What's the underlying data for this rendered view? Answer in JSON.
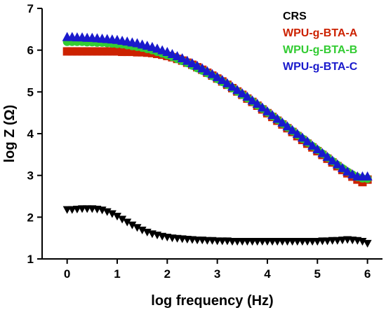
{
  "chart_data": {
    "type": "scatter",
    "title": "",
    "xlabel": "log frequency (Hz)",
    "ylabel": "log Z (Ω)",
    "xlim": [
      -0.5,
      6.3
    ],
    "ylim": [
      1,
      7
    ],
    "xticks": [
      "0",
      "1",
      "2",
      "3",
      "4",
      "5",
      "6"
    ],
    "yticks": [
      "1",
      "2",
      "3",
      "4",
      "5",
      "6",
      "7"
    ],
    "grid": false,
    "legend_position": "top-right",
    "series": [
      {
        "name": "CRS",
        "color": "#000000",
        "marker": "triangle-down",
        "x": [
          0,
          0.1,
          0.2,
          0.3,
          0.4,
          0.5,
          0.6,
          0.7,
          0.8,
          0.9,
          1.0,
          1.1,
          1.2,
          1.3,
          1.4,
          1.5,
          1.6,
          1.7,
          1.8,
          1.9,
          2.0,
          2.1,
          2.2,
          2.3,
          2.4,
          2.5,
          2.6,
          2.7,
          2.8,
          2.9,
          3.0,
          3.1,
          3.2,
          3.3,
          3.4,
          3.5,
          3.6,
          3.7,
          3.8,
          3.9,
          4.0,
          4.1,
          4.2,
          4.3,
          4.4,
          4.5,
          4.6,
          4.7,
          4.8,
          4.9,
          5.0,
          5.1,
          5.2,
          5.3,
          5.4,
          5.5,
          5.6,
          5.7,
          5.8,
          5.9,
          6.0
        ],
        "y": [
          2.18,
          2.18,
          2.19,
          2.2,
          2.2,
          2.2,
          2.19,
          2.17,
          2.13,
          2.08,
          2.02,
          1.95,
          1.88,
          1.81,
          1.75,
          1.69,
          1.64,
          1.6,
          1.57,
          1.54,
          1.52,
          1.5,
          1.49,
          1.48,
          1.47,
          1.46,
          1.45,
          1.45,
          1.44,
          1.44,
          1.43,
          1.43,
          1.43,
          1.42,
          1.42,
          1.42,
          1.42,
          1.42,
          1.42,
          1.42,
          1.42,
          1.42,
          1.42,
          1.42,
          1.42,
          1.42,
          1.42,
          1.42,
          1.42,
          1.42,
          1.42,
          1.43,
          1.43,
          1.44,
          1.44,
          1.45,
          1.46,
          1.45,
          1.44,
          1.42,
          1.37
        ]
      },
      {
        "name": "WPU-g-BTA-A",
        "color": "#cc2200",
        "marker": "square",
        "x": [
          0,
          0.1,
          0.2,
          0.3,
          0.4,
          0.5,
          0.6,
          0.7,
          0.8,
          0.9,
          1.0,
          1.1,
          1.2,
          1.3,
          1.4,
          1.5,
          1.6,
          1.7,
          1.8,
          1.9,
          2.0,
          2.1,
          2.2,
          2.3,
          2.4,
          2.5,
          2.6,
          2.7,
          2.8,
          2.9,
          3.0,
          3.1,
          3.2,
          3.3,
          3.4,
          3.5,
          3.6,
          3.7,
          3.8,
          3.9,
          4.0,
          4.1,
          4.2,
          4.3,
          4.4,
          4.5,
          4.6,
          4.7,
          4.8,
          4.9,
          5.0,
          5.1,
          5.2,
          5.3,
          5.4,
          5.5,
          5.6,
          5.7,
          5.8,
          5.9,
          6.0
        ],
        "y": [
          5.97,
          5.97,
          5.97,
          5.97,
          5.97,
          5.97,
          5.97,
          5.97,
          5.97,
          5.97,
          5.97,
          5.96,
          5.96,
          5.96,
          5.95,
          5.95,
          5.94,
          5.93,
          5.91,
          5.89,
          5.86,
          5.83,
          5.79,
          5.75,
          5.7,
          5.65,
          5.59,
          5.53,
          5.46,
          5.39,
          5.32,
          5.25,
          5.17,
          5.09,
          5.01,
          4.93,
          4.84,
          4.76,
          4.67,
          4.58,
          4.49,
          4.4,
          4.31,
          4.22,
          4.13,
          4.04,
          3.94,
          3.85,
          3.76,
          3.67,
          3.58,
          3.49,
          3.4,
          3.31,
          3.22,
          3.13,
          3.05,
          2.97,
          2.9,
          2.84,
          2.9
        ]
      },
      {
        "name": "WPU-g-BTA-B",
        "color": "#33cc33",
        "marker": "circle",
        "x": [
          0,
          0.1,
          0.2,
          0.3,
          0.4,
          0.5,
          0.6,
          0.7,
          0.8,
          0.9,
          1.0,
          1.1,
          1.2,
          1.3,
          1.4,
          1.5,
          1.6,
          1.7,
          1.8,
          1.9,
          2.0,
          2.1,
          2.2,
          2.3,
          2.4,
          2.5,
          2.6,
          2.7,
          2.8,
          2.9,
          3.0,
          3.1,
          3.2,
          3.3,
          3.4,
          3.5,
          3.6,
          3.7,
          3.8,
          3.9,
          4.0,
          4.1,
          4.2,
          4.3,
          4.4,
          4.5,
          4.6,
          4.7,
          4.8,
          4.9,
          5.0,
          5.1,
          5.2,
          5.3,
          5.4,
          5.5,
          5.6,
          5.7,
          5.8,
          5.9,
          6.0
        ],
        "y": [
          6.2,
          6.2,
          6.2,
          6.2,
          6.19,
          6.19,
          6.18,
          6.18,
          6.17,
          6.16,
          6.15,
          6.14,
          6.12,
          6.1,
          6.08,
          6.06,
          6.03,
          6.0,
          5.96,
          5.92,
          5.88,
          5.84,
          5.79,
          5.74,
          5.69,
          5.63,
          5.57,
          5.51,
          5.45,
          5.38,
          5.31,
          5.24,
          5.17,
          5.09,
          5.01,
          4.93,
          4.85,
          4.77,
          4.68,
          4.6,
          4.51,
          4.42,
          4.33,
          4.24,
          4.15,
          4.06,
          3.97,
          3.88,
          3.79,
          3.7,
          3.61,
          3.52,
          3.43,
          3.34,
          3.25,
          3.17,
          3.09,
          3.02,
          2.96,
          2.93,
          2.92
        ]
      },
      {
        "name": "WPU-g-BTA-C",
        "color": "#1a1acc",
        "marker": "triangle-up",
        "x": [
          0,
          0.1,
          0.2,
          0.3,
          0.4,
          0.5,
          0.6,
          0.7,
          0.8,
          0.9,
          1.0,
          1.1,
          1.2,
          1.3,
          1.4,
          1.5,
          1.6,
          1.7,
          1.8,
          1.9,
          2.0,
          2.1,
          2.2,
          2.3,
          2.4,
          2.5,
          2.6,
          2.7,
          2.8,
          2.9,
          3.0,
          3.1,
          3.2,
          3.3,
          3.4,
          3.5,
          3.6,
          3.7,
          3.8,
          3.9,
          4.0,
          4.1,
          4.2,
          4.3,
          4.4,
          4.5,
          4.6,
          4.7,
          4.8,
          4.9,
          5.0,
          5.1,
          5.2,
          5.3,
          5.4,
          5.5,
          5.6,
          5.7,
          5.8,
          5.9,
          6.0
        ],
        "y": [
          6.32,
          6.32,
          6.31,
          6.31,
          6.3,
          6.3,
          6.29,
          6.28,
          6.27,
          6.26,
          6.25,
          6.23,
          6.21,
          6.19,
          6.17,
          6.14,
          6.11,
          6.08,
          6.04,
          6.0,
          5.96,
          5.91,
          5.86,
          5.81,
          5.75,
          5.69,
          5.63,
          5.57,
          5.5,
          5.43,
          5.36,
          5.29,
          5.21,
          5.13,
          5.05,
          4.97,
          4.89,
          4.8,
          4.72,
          4.63,
          4.54,
          4.45,
          4.36,
          4.27,
          4.18,
          4.09,
          4.0,
          3.91,
          3.82,
          3.72,
          3.63,
          3.54,
          3.45,
          3.36,
          3.27,
          3.18,
          3.1,
          3.03,
          2.98,
          2.98,
          2.98
        ]
      }
    ]
  }
}
